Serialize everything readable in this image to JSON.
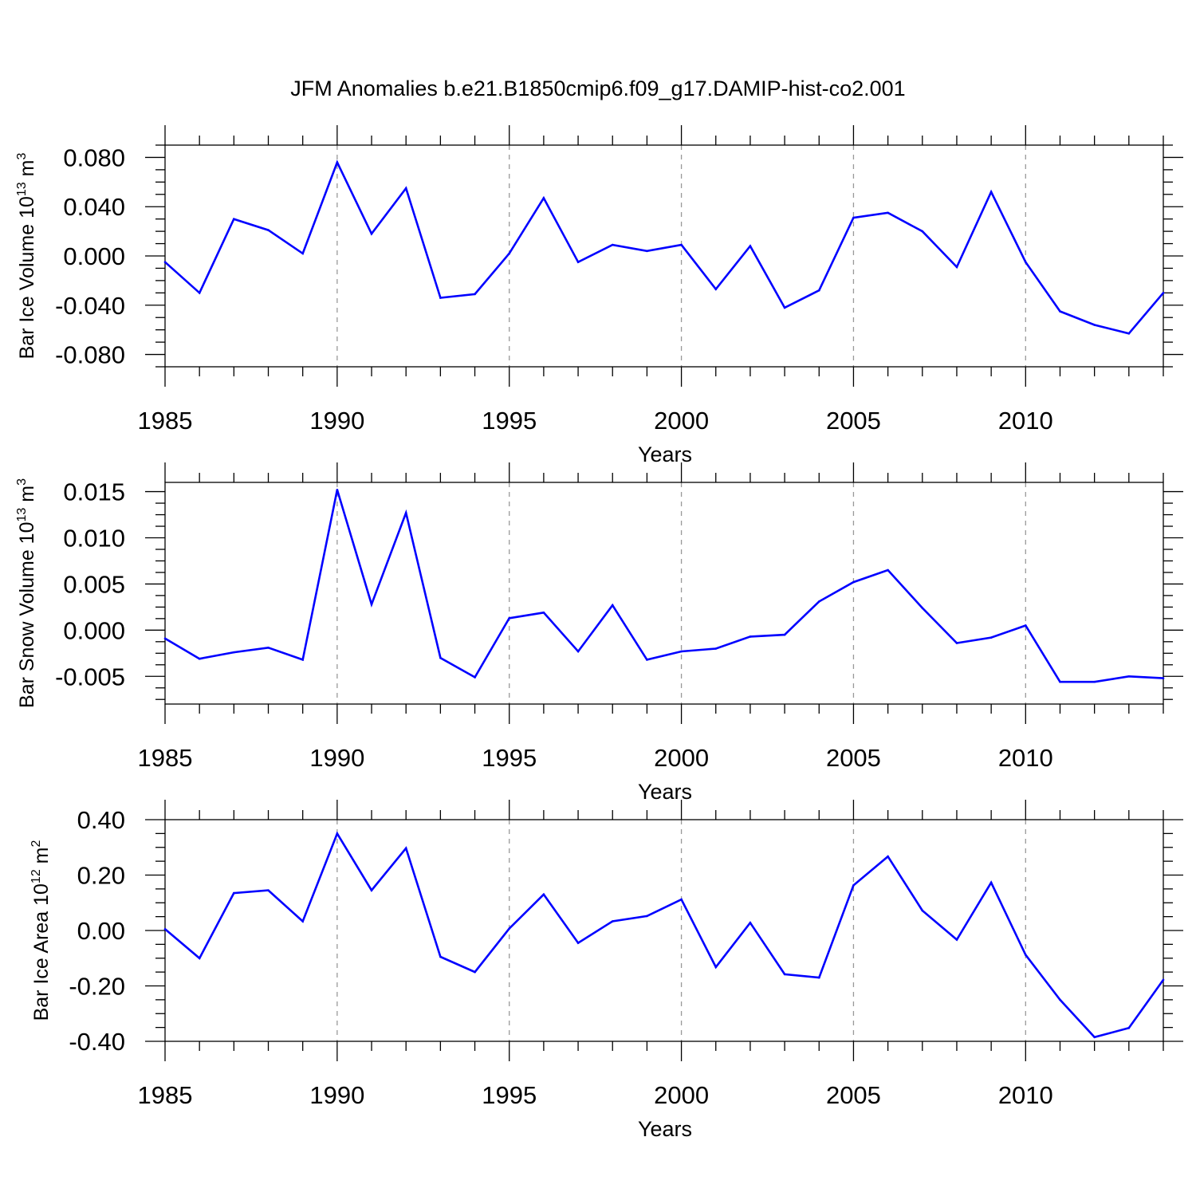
{
  "title": "JFM Anomalies b.e21.B1850cmip6.f09_g17.DAMIP-hist-co2.001",
  "line_color": "#0000ff",
  "chart_data": [
    {
      "type": "line",
      "title": "JFM Anomalies b.e21.B1850cmip6.f09_g17.DAMIP-hist-co2.001",
      "xlabel": "Years",
      "ylabel_parts": [
        "Bar Ice Volume 10",
        "13",
        " m",
        "3"
      ],
      "xlim": [
        1985,
        2014
      ],
      "ylim": [
        -0.09,
        0.09
      ],
      "x_ticks": [
        "1985",
        "1990",
        "1995",
        "2000",
        "2005",
        "2010"
      ],
      "y_ticks": [
        {
          "value": 0.08,
          "label": "0.080"
        },
        {
          "value": 0.04,
          "label": "0.040"
        },
        {
          "value": 0.0,
          "label": "0.000"
        },
        {
          "value": -0.04,
          "label": "-0.040"
        },
        {
          "value": -0.08,
          "label": "-0.080"
        }
      ],
      "x": [
        1985,
        1986,
        1987,
        1988,
        1989,
        1990,
        1991,
        1992,
        1993,
        1994,
        1995,
        1996,
        1997,
        1998,
        1999,
        2000,
        2001,
        2002,
        2003,
        2004,
        2005,
        2006,
        2007,
        2008,
        2009,
        2010,
        2011,
        2012,
        2013,
        2014
      ],
      "values": [
        -0.005,
        -0.03,
        0.03,
        0.021,
        0.002,
        0.076,
        0.018,
        0.055,
        -0.034,
        -0.031,
        0.002,
        0.047,
        -0.005,
        0.009,
        0.004,
        0.009,
        -0.027,
        0.008,
        -0.042,
        -0.028,
        0.031,
        0.035,
        0.02,
        -0.009,
        0.052,
        -0.005,
        -0.045,
        -0.056,
        -0.063,
        -0.03
      ]
    },
    {
      "type": "line",
      "xlabel": "Years",
      "ylabel_parts": [
        "Bar Snow Volume 10",
        "13",
        " m",
        "3"
      ],
      "xlim": [
        1985,
        2014
      ],
      "ylim": [
        -0.008,
        0.016
      ],
      "x_ticks": [
        "1985",
        "1990",
        "1995",
        "2000",
        "2005",
        "2010"
      ],
      "y_ticks": [
        {
          "value": 0.015,
          "label": "0.015"
        },
        {
          "value": 0.01,
          "label": "0.010"
        },
        {
          "value": 0.005,
          "label": "0.005"
        },
        {
          "value": 0.0,
          "label": "0.000"
        },
        {
          "value": -0.005,
          "label": "-0.005"
        }
      ],
      "x": [
        1985,
        1986,
        1987,
        1988,
        1989,
        1990,
        1991,
        1992,
        1993,
        1994,
        1995,
        1996,
        1997,
        1998,
        1999,
        2000,
        2001,
        2002,
        2003,
        2004,
        2005,
        2006,
        2007,
        2008,
        2009,
        2010,
        2011,
        2012,
        2013,
        2014
      ],
      "values": [
        -0.0009,
        -0.0031,
        -0.0024,
        -0.0019,
        -0.0032,
        0.0152,
        0.0028,
        0.0127,
        -0.003,
        -0.0051,
        0.0013,
        0.0019,
        -0.0023,
        0.0027,
        -0.0032,
        -0.0023,
        -0.002,
        -0.0007,
        -0.0005,
        0.0031,
        0.0052,
        0.0065,
        0.0024,
        -0.0014,
        -0.0008,
        0.0005,
        -0.0056,
        -0.0056,
        -0.005,
        -0.0052
      ]
    },
    {
      "type": "line",
      "xlabel": "Years",
      "ylabel_parts": [
        "Bar Ice Area 10",
        "12",
        " m",
        "2"
      ],
      "xlim": [
        1985,
        2014
      ],
      "ylim": [
        -0.4,
        0.4
      ],
      "x_ticks": [
        "1985",
        "1990",
        "1995",
        "2000",
        "2005",
        "2010"
      ],
      "y_ticks": [
        {
          "value": 0.4,
          "label": "0.40"
        },
        {
          "value": 0.2,
          "label": "0.20"
        },
        {
          "value": 0.0,
          "label": "0.00"
        },
        {
          "value": -0.2,
          "label": "-0.20"
        },
        {
          "value": -0.4,
          "label": "-0.40"
        }
      ],
      "x": [
        1985,
        1986,
        1987,
        1988,
        1989,
        1990,
        1991,
        1992,
        1993,
        1994,
        1995,
        1996,
        1997,
        1998,
        1999,
        2000,
        2001,
        2002,
        2003,
        2004,
        2005,
        2006,
        2007,
        2008,
        2009,
        2010,
        2011,
        2012,
        2013,
        2014
      ],
      "values": [
        0.005,
        -0.1,
        0.135,
        0.145,
        0.033,
        0.35,
        0.145,
        0.297,
        -0.095,
        -0.15,
        0.007,
        0.13,
        -0.045,
        0.033,
        0.052,
        0.112,
        -0.132,
        0.028,
        -0.158,
        -0.17,
        0.163,
        0.267,
        0.072,
        -0.033,
        0.173,
        -0.088,
        -0.25,
        -0.385,
        -0.352,
        -0.178
      ]
    }
  ]
}
